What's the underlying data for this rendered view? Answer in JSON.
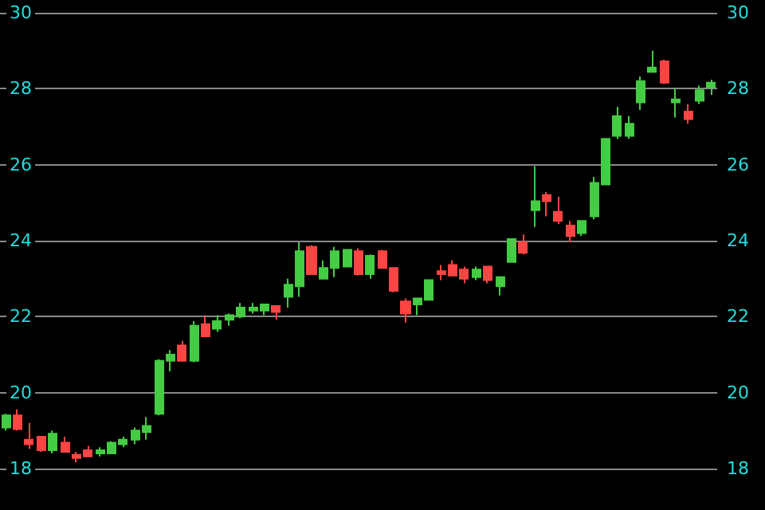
{
  "chart_data": {
    "type": "candlestick",
    "categories": [
      null,
      null,
      null,
      null,
      null,
      null,
      null,
      null,
      null,
      null,
      null,
      null,
      null,
      null,
      null,
      null,
      null,
      null,
      null,
      null,
      null,
      null,
      null,
      null,
      null,
      null,
      null,
      null,
      null,
      null,
      null,
      null,
      null,
      null,
      null,
      null,
      null,
      null,
      null,
      null,
      null,
      null,
      null,
      null,
      null,
      null,
      null,
      null,
      null,
      null,
      null,
      null,
      null,
      null,
      null,
      null,
      null,
      null,
      null,
      null,
      null
    ],
    "ohlc": [
      [
        19.08,
        19.44,
        19.0,
        19.4
      ],
      [
        19.4,
        19.56,
        19.0,
        19.04
      ],
      [
        18.76,
        19.2,
        18.52,
        18.64
      ],
      [
        18.84,
        18.84,
        18.44,
        18.48
      ],
      [
        18.48,
        19.0,
        18.4,
        18.92
      ],
      [
        18.68,
        18.84,
        18.44,
        18.44
      ],
      [
        18.36,
        18.44,
        18.16,
        18.28
      ],
      [
        18.48,
        18.6,
        18.32,
        18.32
      ],
      [
        18.4,
        18.56,
        18.32,
        18.48
      ],
      [
        18.4,
        18.72,
        18.4,
        18.68
      ],
      [
        18.64,
        18.84,
        18.56,
        18.76
      ],
      [
        18.76,
        19.08,
        18.64,
        19.0
      ],
      [
        18.96,
        19.36,
        18.76,
        19.12
      ],
      [
        19.44,
        20.88,
        19.4,
        20.84
      ],
      [
        20.84,
        21.12,
        20.56,
        21.0
      ],
      [
        21.24,
        21.36,
        20.84,
        20.84
      ],
      [
        20.84,
        21.88,
        20.8,
        21.76
      ],
      [
        21.8,
        22.04,
        21.48,
        21.48
      ],
      [
        21.68,
        22.04,
        21.6,
        21.88
      ],
      [
        21.92,
        22.08,
        21.76,
        22.04
      ],
      [
        22.0,
        22.36,
        21.96,
        22.24
      ],
      [
        22.16,
        22.36,
        22.08,
        22.24
      ],
      [
        22.16,
        22.32,
        22.04,
        22.32
      ],
      [
        22.28,
        22.28,
        21.92,
        22.12
      ],
      [
        22.52,
        23.0,
        22.24,
        22.84
      ],
      [
        22.8,
        23.96,
        22.52,
        23.72
      ],
      [
        23.84,
        23.88,
        23.12,
        23.12
      ],
      [
        23.0,
        23.48,
        23.0,
        23.28
      ],
      [
        23.28,
        23.84,
        23.04,
        23.72
      ],
      [
        23.32,
        23.76,
        23.32,
        23.76
      ],
      [
        23.72,
        23.8,
        23.08,
        23.12
      ],
      [
        23.12,
        23.64,
        23.0,
        23.6
      ],
      [
        23.72,
        23.76,
        23.28,
        23.28
      ],
      [
        23.28,
        23.28,
        22.64,
        22.68
      ],
      [
        22.4,
        22.48,
        21.84,
        22.08
      ],
      [
        22.32,
        22.48,
        22.04,
        22.48
      ],
      [
        22.44,
        22.96,
        22.44,
        22.96
      ],
      [
        23.2,
        23.36,
        22.96,
        23.12
      ],
      [
        23.36,
        23.48,
        23.08,
        23.08
      ],
      [
        23.24,
        23.32,
        22.88,
        23.0
      ],
      [
        23.04,
        23.32,
        22.96,
        23.24
      ],
      [
        23.32,
        23.32,
        22.88,
        22.96
      ],
      [
        22.8,
        23.04,
        22.56,
        23.04
      ],
      [
        23.44,
        24.04,
        23.44,
        24.04
      ],
      [
        23.96,
        24.16,
        23.64,
        23.68
      ],
      [
        24.8,
        25.96,
        24.36,
        25.04
      ],
      [
        25.2,
        25.28,
        24.64,
        25.04
      ],
      [
        24.76,
        25.16,
        24.44,
        24.52
      ],
      [
        24.4,
        24.52,
        23.96,
        24.12
      ],
      [
        24.2,
        24.52,
        24.12,
        24.52
      ],
      [
        24.64,
        25.68,
        24.56,
        25.52
      ],
      [
        25.48,
        26.7,
        25.48,
        26.68
      ],
      [
        26.76,
        27.52,
        26.68,
        27.28
      ],
      [
        26.76,
        27.28,
        26.68,
        27.08
      ],
      [
        27.64,
        28.32,
        27.44,
        28.2
      ],
      [
        28.44,
        29.0,
        28.44,
        28.56
      ],
      [
        28.72,
        28.76,
        28.12,
        28.16
      ],
      [
        27.64,
        28.0,
        27.24,
        27.72
      ],
      [
        27.4,
        27.6,
        27.08,
        27.2
      ],
      [
        27.68,
        28.08,
        27.6,
        27.96
      ],
      [
        28.04,
        28.24,
        27.84,
        28.16
      ]
    ],
    "ylim": [
      18,
      30
    ],
    "yticks": [
      18,
      20,
      22,
      24,
      26,
      28,
      30
    ],
    "y2lim": [
      18,
      30
    ],
    "y2ticks": [
      18,
      20,
      22,
      24,
      26,
      28,
      30
    ],
    "grid": "y"
  }
}
